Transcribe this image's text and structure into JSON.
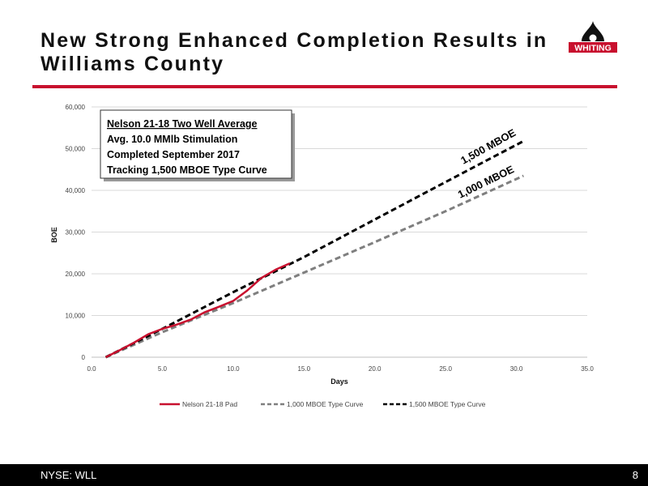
{
  "slide": {
    "title": "New Strong Enhanced Completion Results in Williams County",
    "logo_text": "WHITING",
    "ticker": "NYSE: WLL",
    "page_number": "8",
    "colors": {
      "accent": "#c8102e",
      "footer_bg": "#000000"
    }
  },
  "chart_data": {
    "type": "line",
    "xlabel": "Days",
    "ylabel": "BOE",
    "xlim": [
      0,
      35
    ],
    "ylim": [
      0,
      60000
    ],
    "xticks": [
      "0.0",
      "5.0",
      "10.0",
      "15.0",
      "20.0",
      "25.0",
      "30.0",
      "35.0"
    ],
    "yticks": [
      "0",
      "10,000",
      "20,000",
      "30,000",
      "40,000",
      "50,000",
      "60,000"
    ],
    "grid": true,
    "legend_position": "bottom",
    "series": [
      {
        "name": "Nelson 21-18 Pad",
        "color": "#c8102e",
        "dash": "solid",
        "x": [
          1,
          2,
          3,
          4,
          5,
          6,
          7,
          8,
          9,
          10,
          11,
          12,
          13,
          14
        ],
        "y": [
          0,
          1700,
          3500,
          5500,
          6800,
          7800,
          9000,
          10800,
          12100,
          13500,
          16000,
          19000,
          21000,
          22500
        ]
      },
      {
        "name": "1,000 MBOE Type Curve",
        "color": "#7f7f7f",
        "dash": "dashed",
        "x": [
          1,
          5,
          10,
          15,
          20,
          25,
          30.5
        ],
        "y": [
          0,
          6000,
          13000,
          20300,
          27600,
          35000,
          43500
        ]
      },
      {
        "name": "1,500 MBOE Type Curve",
        "color": "#000000",
        "dash": "dashed",
        "x": [
          1,
          5,
          10,
          15,
          20,
          25,
          30.5
        ],
        "y": [
          0,
          6800,
          15600,
          24000,
          33000,
          42000,
          51800
        ]
      }
    ],
    "annotations": {
      "box_title": "Nelson 21-18 Two Well Average",
      "box_lines": [
        "Avg. 10.0 MMlb Stimulation",
        "Completed September 2017",
        "Tracking 1,500 MBOE Type Curve"
      ],
      "label_1500": "1,500 MBOE",
      "label_1000": "1,000 MBOE"
    }
  }
}
